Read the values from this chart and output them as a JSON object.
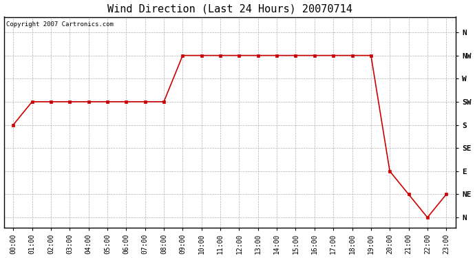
{
  "title": "Wind Direction (Last 24 Hours) 20070714",
  "copyright_text": "Copyright 2007 Cartronics.com",
  "background_color": "#ffffff",
  "plot_bg_color": "#ffffff",
  "grid_color": "#b0b0b0",
  "line_color": "#cc0000",
  "marker_color": "#cc0000",
  "hours": [
    0,
    1,
    2,
    3,
    4,
    5,
    6,
    7,
    8,
    9,
    10,
    11,
    12,
    13,
    14,
    15,
    16,
    17,
    18,
    19,
    20,
    21,
    22,
    23
  ],
  "wind_values": [
    180,
    225,
    225,
    225,
    225,
    225,
    225,
    225,
    225,
    315,
    315,
    315,
    315,
    315,
    315,
    315,
    315,
    315,
    315,
    315,
    90,
    45,
    0,
    45
  ],
  "ytick_labels": [
    "N",
    "NW",
    "W",
    "SW",
    "S",
    "SE",
    "E",
    "NE",
    "N"
  ],
  "ytick_values": [
    360,
    315,
    270,
    225,
    180,
    135,
    90,
    45,
    0
  ],
  "ylim": [
    -20,
    390
  ],
  "xlim": [
    -0.5,
    23.5
  ],
  "xtick_labels": [
    "00:00",
    "01:00",
    "02:00",
    "03:00",
    "04:00",
    "05:00",
    "06:00",
    "07:00",
    "08:00",
    "09:00",
    "10:00",
    "11:00",
    "12:00",
    "13:00",
    "14:00",
    "15:00",
    "16:00",
    "17:00",
    "18:00",
    "19:00",
    "20:00",
    "21:00",
    "22:00",
    "23:00"
  ],
  "title_fontsize": 11,
  "label_fontsize": 7,
  "copyright_fontsize": 6.5
}
